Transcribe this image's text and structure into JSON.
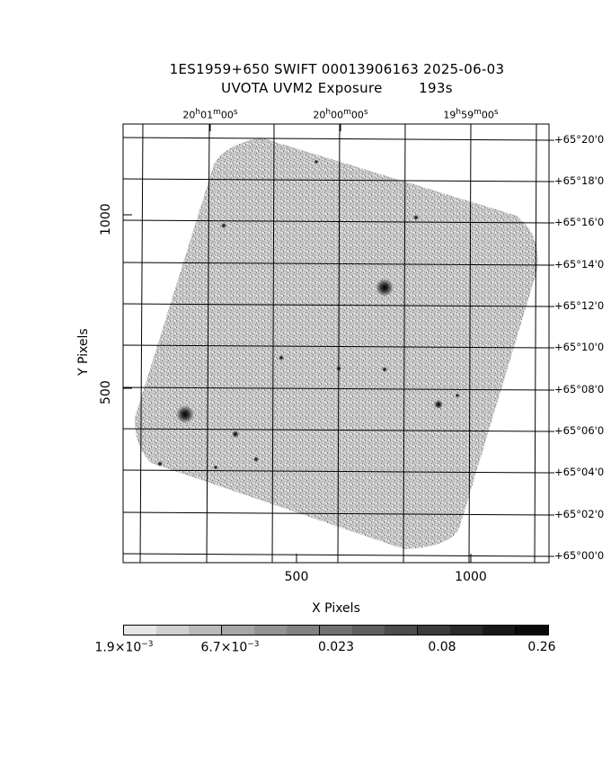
{
  "header": {
    "line1": "1ES1959+650 SWIFT 00013906163 2025-06-03",
    "line2": "UVOTA UVM2 Exposure        193s"
  },
  "top_axis": {
    "labels": [
      {
        "h": "20",
        "m": "01",
        "s": "00"
      },
      {
        "h": "20",
        "m": "00",
        "s": "00"
      },
      {
        "h": "19",
        "m": "59",
        "s": "00"
      }
    ]
  },
  "right_axis": {
    "labels": [
      "+65°20'0",
      "+65°18'0",
      "+65°16'0",
      "+65°14'0",
      "+65°12'0",
      "+65°10'0",
      "+65°08'0",
      "+65°06'0",
      "+65°04'0",
      "+65°02'0",
      "+65°00'0"
    ]
  },
  "x_axis": {
    "label": "X Pixels",
    "ticks": [
      "500",
      "1000"
    ]
  },
  "y_axis": {
    "label": "Y Pixels",
    "ticks": [
      "1000",
      "500"
    ]
  },
  "colorbar": {
    "labels": [
      {
        "base": "1.9×10",
        "exp": "−3"
      },
      {
        "base": "6.7×10",
        "exp": "−3"
      },
      {
        "base": "0.023",
        "exp": ""
      },
      {
        "base": "0.08",
        "exp": ""
      },
      {
        "base": "0.26",
        "exp": ""
      }
    ],
    "colors": [
      "#e6e6e6",
      "#d0d0d0",
      "#bababa",
      "#a6a6a6",
      "#939393",
      "#828282",
      "#707070",
      "#5e5e5e",
      "#4c4c4c",
      "#3b3b3b",
      "#2a2a2a",
      "#191919",
      "#0a0a0a"
    ]
  }
}
